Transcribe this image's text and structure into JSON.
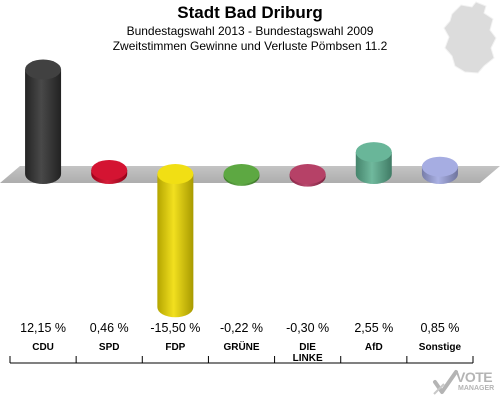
{
  "header": {
    "title": "Stadt Bad Driburg",
    "subtitle": "Bundestagswahl 2013 - Bundestagswahl 2009",
    "subtitle2": "Zweitstimmen Gewinne und Verluste Pömbsen 11.2"
  },
  "brand": {
    "line1": "VOTE",
    "line2": "MANAGER"
  },
  "colors": {
    "background": "#ffffff",
    "platform": "#b9b9b9",
    "map": "#dcdcdc",
    "brand": "#b4b4b4"
  },
  "chart_data": {
    "type": "bar",
    "title": "Stadt Bad Driburg",
    "subtitle": "Bundestagswahl 2013 - Bundestagswahl 2009 / Zweitstimmen Gewinne und Verluste Pömbsen 11.2",
    "categories": [
      "CDU",
      "SPD",
      "FDP",
      "GRÜNE",
      "DIE LINKE",
      "AfD",
      "Sonstige"
    ],
    "category_lines": [
      [
        "CDU"
      ],
      [
        "SPD"
      ],
      [
        "FDP"
      ],
      [
        "GRÜNE"
      ],
      [
        "DIE",
        "LINKE"
      ],
      [
        "AfD"
      ],
      [
        "Sonstige"
      ]
    ],
    "values": [
      12.15,
      0.46,
      -15.5,
      -0.22,
      -0.3,
      2.55,
      0.85
    ],
    "value_labels": [
      "12,15 %",
      "0,46 %",
      "-15,50 %",
      "-0,22 %",
      "-0,30 %",
      "2,55 %",
      "0,85 %"
    ],
    "colors": [
      "#303030",
      "#d00020",
      "#f0dc00",
      "#4fa032",
      "#b0305a",
      "#5cb090",
      "#9ea6e0"
    ],
    "unit": "%",
    "baseline": 0,
    "ylim": [
      -15.5,
      12.15
    ],
    "grid": false,
    "legend": "none",
    "xlabel": "",
    "ylabel": ""
  }
}
